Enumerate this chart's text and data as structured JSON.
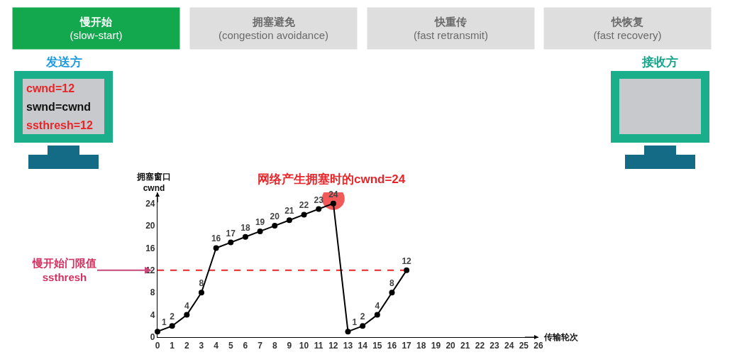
{
  "chart_data": {
    "type": "line",
    "xlabel": "传输轮次",
    "ylabel": "拥塞窗口\ncwnd",
    "x": [
      0,
      1,
      2,
      3,
      4,
      5,
      6,
      7,
      8,
      9,
      10,
      11,
      12,
      13,
      14,
      15,
      16,
      17
    ],
    "series": [
      {
        "color": "#000000",
        "values": [
          1,
          2,
          4,
          8,
          16,
          17,
          18,
          19,
          20,
          21,
          22,
          23,
          24,
          1,
          2,
          4,
          8,
          12
        ]
      }
    ],
    "xlim": [
      0,
      26
    ],
    "xticks": [
      0,
      1,
      2,
      3,
      4,
      5,
      6,
      7,
      8,
      9,
      10,
      11,
      12,
      13,
      14,
      15,
      16,
      17,
      18,
      19,
      20,
      21,
      22,
      23,
      24,
      25,
      26
    ],
    "ylim": [
      0,
      26
    ],
    "yticks": [
      0,
      4,
      8,
      12,
      16,
      20,
      24
    ],
    "grid": false,
    "marker": "circle",
    "line_style": "solid",
    "data_labels": true,
    "ref_lines": [
      {
        "axis": "y",
        "value": 12,
        "label": "慢开始门限值\nssthresh",
        "color": "#e8262a",
        "line_style": "dashed"
      }
    ],
    "annotations": [
      "慢开始\n(slow-start)",
      "拥塞避免\n(congestion avoidance)",
      "快重传\n(fast retransmit)",
      "快恢复\n(fast recovery)",
      "发送方",
      "cwnd=12",
      "swnd=cwnd",
      "ssthresh=12",
      "接收方",
      {
        "text": "网络产生拥塞时的cwnd=24",
        "x": 12,
        "y": 24
      }
    ]
  }
}
